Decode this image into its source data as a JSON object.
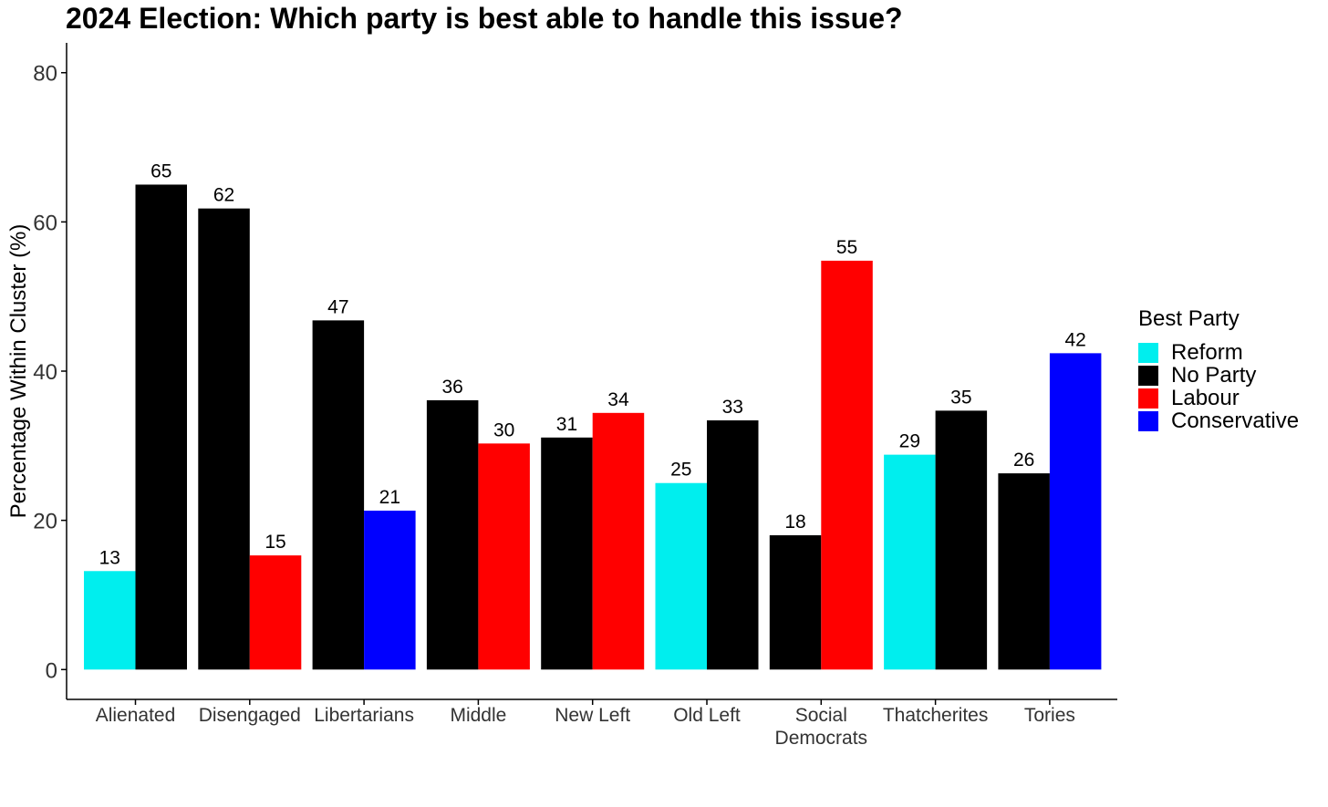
{
  "chart_data": {
    "type": "bar",
    "title": "2024 Election: Which party is best able to handle this issue?",
    "xlabel": "",
    "ylabel": "Percentage Within Cluster (%)",
    "ylim": [
      -4,
      84
    ],
    "yticks": [
      0,
      20,
      40,
      60,
      80
    ],
    "grid": false,
    "legend": {
      "title": "Best Party",
      "placement": "right",
      "entries": [
        {
          "name": "Reform",
          "color": "#00EEEE"
        },
        {
          "name": "No Party",
          "color": "#000000"
        },
        {
          "name": "Labour",
          "color": "#FF0000"
        },
        {
          "name": "Conservative",
          "color": "#0000FF"
        }
      ]
    },
    "groups": [
      {
        "category": "Alienated",
        "bars": [
          {
            "party": "Reform",
            "value": 13.2,
            "label": "13"
          },
          {
            "party": "No Party",
            "value": 65.0,
            "label": "65"
          }
        ]
      },
      {
        "category": "Disengaged",
        "bars": [
          {
            "party": "No Party",
            "value": 61.8,
            "label": "62"
          },
          {
            "party": "Labour",
            "value": 15.3,
            "label": "15"
          }
        ]
      },
      {
        "category": "Libertarians",
        "bars": [
          {
            "party": "No Party",
            "value": 46.8,
            "label": "47"
          },
          {
            "party": "Conservative",
            "value": 21.3,
            "label": "21"
          }
        ]
      },
      {
        "category": "Middle",
        "bars": [
          {
            "party": "No Party",
            "value": 36.1,
            "label": "36"
          },
          {
            "party": "Labour",
            "value": 30.3,
            "label": "30"
          }
        ]
      },
      {
        "category": "New Left",
        "bars": [
          {
            "party": "No Party",
            "value": 31.1,
            "label": "31"
          },
          {
            "party": "Labour",
            "value": 34.4,
            "label": "34"
          }
        ]
      },
      {
        "category": "Old Left",
        "bars": [
          {
            "party": "Reform",
            "value": 25.0,
            "label": "25"
          },
          {
            "party": "No Party",
            "value": 33.4,
            "label": "33"
          }
        ]
      },
      {
        "category": "Social\nDemocrats",
        "bars": [
          {
            "party": "No Party",
            "value": 18.0,
            "label": "18"
          },
          {
            "party": "Labour",
            "value": 54.8,
            "label": "55"
          }
        ]
      },
      {
        "category": "Thatcherites",
        "bars": [
          {
            "party": "Reform",
            "value": 28.8,
            "label": "29"
          },
          {
            "party": "No Party",
            "value": 34.7,
            "label": "35"
          }
        ]
      },
      {
        "category": "Tories",
        "bars": [
          {
            "party": "No Party",
            "value": 26.3,
            "label": "26"
          },
          {
            "party": "Conservative",
            "value": 42.4,
            "label": "42"
          }
        ]
      }
    ]
  }
}
